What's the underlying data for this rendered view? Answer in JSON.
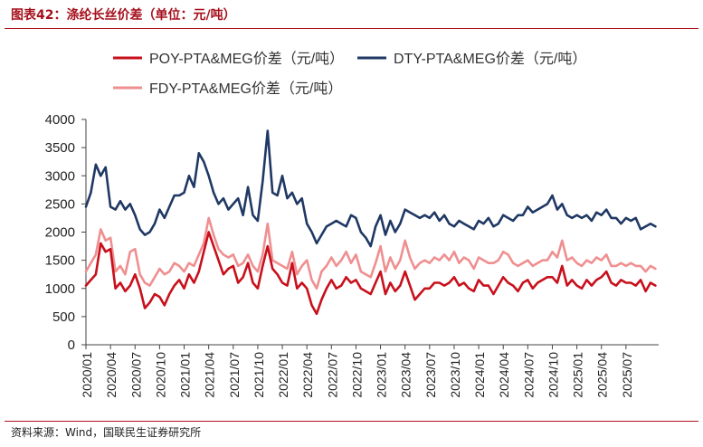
{
  "header": {
    "title": "图表42：涤纶长丝价差（单位：元/吨）"
  },
  "footer": {
    "source": "资料来源：Wind，国联民生证券研究所"
  },
  "chart_data": {
    "type": "line",
    "title": "涤纶长丝价差（单位：元/吨）",
    "xlabel": "",
    "ylabel": "",
    "ylim": [
      0,
      4000
    ],
    "yticks": [
      0,
      500,
      1000,
      1500,
      2000,
      2500,
      3000,
      3500,
      4000
    ],
    "xlim": [
      2020.0,
      2025.833
    ],
    "categories": [
      "2020/01",
      "2020/04",
      "2020/07",
      "2020/10",
      "2021/01",
      "2021/04",
      "2021/07",
      "2021/10",
      "2022/01",
      "2022/04",
      "2022/07",
      "2022/10",
      "2023/01",
      "2023/04",
      "2023/07",
      "2023/10",
      "2024/01",
      "2024/04",
      "2024/07",
      "2024/10",
      "2025/01",
      "2025/04",
      "2025/07"
    ],
    "legend_position": "top",
    "series": [
      {
        "name": "POY-PTA&MEG价差（元/吨）",
        "color": "#c8101c",
        "x": [
          2020.0,
          2020.05,
          2020.1,
          2020.15,
          2020.2,
          2020.25,
          2020.3,
          2020.35,
          2020.4,
          2020.45,
          2020.5,
          2020.55,
          2020.6,
          2020.65,
          2020.7,
          2020.75,
          2020.8,
          2020.85,
          2020.9,
          2020.95,
          2021.0,
          2021.05,
          2021.1,
          2021.15,
          2021.2,
          2021.25,
          2021.3,
          2021.35,
          2021.4,
          2021.45,
          2021.5,
          2021.55,
          2021.6,
          2021.65,
          2021.7,
          2021.75,
          2021.8,
          2021.85,
          2021.9,
          2021.95,
          2022.0,
          2022.05,
          2022.1,
          2022.15,
          2022.2,
          2022.25,
          2022.3,
          2022.35,
          2022.4,
          2022.45,
          2022.5,
          2022.55,
          2022.6,
          2022.65,
          2022.7,
          2022.75,
          2022.8,
          2022.85,
          2022.9,
          2022.95,
          2023.0,
          2023.05,
          2023.1,
          2023.15,
          2023.2,
          2023.25,
          2023.3,
          2023.35,
          2023.4,
          2023.45,
          2023.5,
          2023.55,
          2023.6,
          2023.65,
          2023.7,
          2023.75,
          2023.8,
          2023.85,
          2023.9,
          2023.95,
          2024.0,
          2024.05,
          2024.1,
          2024.15,
          2024.2,
          2024.25,
          2024.3,
          2024.35,
          2024.4,
          2024.45,
          2024.5,
          2024.55,
          2024.6,
          2024.65,
          2024.7,
          2024.75,
          2024.8,
          2024.85,
          2024.9,
          2024.95,
          2025.0,
          2025.05,
          2025.1,
          2025.15,
          2025.2,
          2025.25,
          2025.3,
          2025.35,
          2025.4,
          2025.45,
          2025.5,
          2025.55,
          2025.6,
          2025.65,
          2025.7,
          2025.75,
          2025.8
        ],
        "values": [
          1050,
          1150,
          1250,
          1800,
          1650,
          1700,
          1000,
          1100,
          950,
          1050,
          1250,
          1000,
          650,
          750,
          900,
          850,
          700,
          900,
          1050,
          1150,
          1000,
          1250,
          1100,
          1300,
          1650,
          2000,
          1750,
          1500,
          1250,
          1350,
          1400,
          1100,
          1200,
          1450,
          1100,
          1000,
          1400,
          1750,
          1350,
          1250,
          1100,
          1050,
          1450,
          1000,
          1100,
          1000,
          700,
          550,
          800,
          1000,
          1150,
          1000,
          1050,
          1200,
          1100,
          1150,
          1000,
          950,
          900,
          1100,
          1300,
          900,
          1100,
          950,
          1050,
          1300,
          1050,
          800,
          900,
          1000,
          1000,
          1100,
          1100,
          1050,
          1100,
          1200,
          1050,
          1100,
          1000,
          950,
          1150,
          1050,
          1050,
          900,
          1050,
          1200,
          1100,
          1050,
          950,
          1100,
          1150,
          1000,
          1100,
          1150,
          1200,
          1200,
          1100,
          1400,
          1050,
          1150,
          1050,
          1000,
          1150,
          1050,
          1150,
          1200,
          1300,
          1100,
          1050,
          1150,
          1100,
          1100,
          1050,
          1150,
          950,
          1100,
          1050
        ]
      },
      {
        "name": "DTY-PTA&MEG价差（元/吨）",
        "color": "#1f3864",
        "x": [
          2020.0,
          2020.05,
          2020.1,
          2020.15,
          2020.2,
          2020.25,
          2020.3,
          2020.35,
          2020.4,
          2020.45,
          2020.5,
          2020.55,
          2020.6,
          2020.65,
          2020.7,
          2020.75,
          2020.8,
          2020.85,
          2020.9,
          2020.95,
          2021.0,
          2021.05,
          2021.1,
          2021.15,
          2021.2,
          2021.25,
          2021.3,
          2021.35,
          2021.4,
          2021.45,
          2021.5,
          2021.55,
          2021.6,
          2021.65,
          2021.7,
          2021.75,
          2021.8,
          2021.85,
          2021.9,
          2021.95,
          2022.0,
          2022.05,
          2022.1,
          2022.15,
          2022.2,
          2022.25,
          2022.3,
          2022.35,
          2022.4,
          2022.45,
          2022.5,
          2022.55,
          2022.6,
          2022.65,
          2022.7,
          2022.75,
          2022.8,
          2022.85,
          2022.9,
          2022.95,
          2023.0,
          2023.05,
          2023.1,
          2023.15,
          2023.2,
          2023.25,
          2023.3,
          2023.35,
          2023.4,
          2023.45,
          2023.5,
          2023.55,
          2023.6,
          2023.65,
          2023.7,
          2023.75,
          2023.8,
          2023.85,
          2023.9,
          2023.95,
          2024.0,
          2024.05,
          2024.1,
          2024.15,
          2024.2,
          2024.25,
          2024.3,
          2024.35,
          2024.4,
          2024.45,
          2024.5,
          2024.55,
          2024.6,
          2024.65,
          2024.7,
          2024.75,
          2024.8,
          2024.85,
          2024.9,
          2024.95,
          2025.0,
          2025.05,
          2025.1,
          2025.15,
          2025.2,
          2025.25,
          2025.3,
          2025.35,
          2025.4,
          2025.45,
          2025.5,
          2025.55,
          2025.6,
          2025.65,
          2025.7,
          2025.75,
          2025.8
        ],
        "values": [
          2450,
          2700,
          3200,
          3000,
          3150,
          2450,
          2400,
          2550,
          2400,
          2500,
          2300,
          2050,
          1950,
          2000,
          2150,
          2400,
          2250,
          2450,
          2650,
          2650,
          2700,
          3000,
          2800,
          3400,
          3250,
          3000,
          2700,
          2500,
          2600,
          2400,
          2500,
          2600,
          2300,
          2800,
          2300,
          2200,
          2900,
          3800,
          2700,
          2650,
          3000,
          2600,
          2700,
          2500,
          2600,
          2150,
          2000,
          1800,
          1950,
          2100,
          2150,
          2200,
          2150,
          2100,
          2300,
          2250,
          2000,
          1900,
          1750,
          2100,
          2300,
          1950,
          2200,
          2000,
          2150,
          2400,
          2350,
          2300,
          2250,
          2300,
          2250,
          2350,
          2200,
          2300,
          2150,
          2100,
          2200,
          2150,
          2100,
          2050,
          2200,
          2150,
          2250,
          2100,
          2150,
          2300,
          2250,
          2200,
          2300,
          2300,
          2450,
          2350,
          2400,
          2450,
          2500,
          2650,
          2400,
          2500,
          2300,
          2250,
          2300,
          2250,
          2300,
          2200,
          2350,
          2300,
          2400,
          2250,
          2250,
          2150,
          2250,
          2200,
          2250,
          2050,
          2100,
          2150,
          2100
        ]
      },
      {
        "name": "FDY-PTA&MEG价差（元/吨）",
        "color": "#ef8f90",
        "x": [
          2020.0,
          2020.05,
          2020.1,
          2020.15,
          2020.2,
          2020.25,
          2020.3,
          2020.35,
          2020.4,
          2020.45,
          2020.5,
          2020.55,
          2020.6,
          2020.65,
          2020.7,
          2020.75,
          2020.8,
          2020.85,
          2020.9,
          2020.95,
          2021.0,
          2021.05,
          2021.1,
          2021.15,
          2021.2,
          2021.25,
          2021.3,
          2021.35,
          2021.4,
          2021.45,
          2021.5,
          2021.55,
          2021.6,
          2021.65,
          2021.7,
          2021.75,
          2021.8,
          2021.85,
          2021.9,
          2021.95,
          2022.0,
          2022.05,
          2022.1,
          2022.15,
          2022.2,
          2022.25,
          2022.3,
          2022.35,
          2022.4,
          2022.45,
          2022.5,
          2022.55,
          2022.6,
          2022.65,
          2022.7,
          2022.75,
          2022.8,
          2022.85,
          2022.9,
          2022.95,
          2023.0,
          2023.05,
          2023.1,
          2023.15,
          2023.2,
          2023.25,
          2023.3,
          2023.35,
          2023.4,
          2023.45,
          2023.5,
          2023.55,
          2023.6,
          2023.65,
          2023.7,
          2023.75,
          2023.8,
          2023.85,
          2023.9,
          2023.95,
          2024.0,
          2024.05,
          2024.1,
          2024.15,
          2024.2,
          2024.25,
          2024.3,
          2024.35,
          2024.4,
          2024.45,
          2024.5,
          2024.55,
          2024.6,
          2024.65,
          2024.7,
          2024.75,
          2024.8,
          2024.85,
          2024.9,
          2024.95,
          2025.0,
          2025.05,
          2025.1,
          2025.15,
          2025.2,
          2025.25,
          2025.3,
          2025.35,
          2025.4,
          2025.45,
          2025.5,
          2025.55,
          2025.6,
          2025.65,
          2025.7,
          2025.75,
          2025.8
        ],
        "values": [
          1300,
          1450,
          1600,
          2050,
          1850,
          1900,
          1300,
          1400,
          1250,
          1650,
          1700,
          1250,
          1100,
          1050,
          1200,
          1350,
          1250,
          1300,
          1450,
          1400,
          1300,
          1450,
          1400,
          1600,
          1800,
          2250,
          1950,
          1700,
          1600,
          1550,
          1600,
          1400,
          1450,
          1600,
          1400,
          1300,
          1600,
          2150,
          1500,
          1450,
          1400,
          1350,
          1650,
          1250,
          1400,
          1500,
          1150,
          1000,
          1300,
          1400,
          1550,
          1400,
          1500,
          1650,
          1450,
          1600,
          1300,
          1250,
          1200,
          1450,
          1750,
          1300,
          1550,
          1350,
          1500,
          1850,
          1550,
          1350,
          1450,
          1500,
          1450,
          1550,
          1500,
          1600,
          1500,
          1650,
          1450,
          1550,
          1500,
          1350,
          1550,
          1500,
          1450,
          1450,
          1500,
          1650,
          1600,
          1450,
          1400,
          1450,
          1500,
          1400,
          1450,
          1500,
          1500,
          1650,
          1550,
          1850,
          1500,
          1550,
          1450,
          1400,
          1500,
          1450,
          1550,
          1500,
          1600,
          1400,
          1400,
          1450,
          1400,
          1450,
          1400,
          1400,
          1300,
          1400,
          1350
        ]
      }
    ]
  }
}
